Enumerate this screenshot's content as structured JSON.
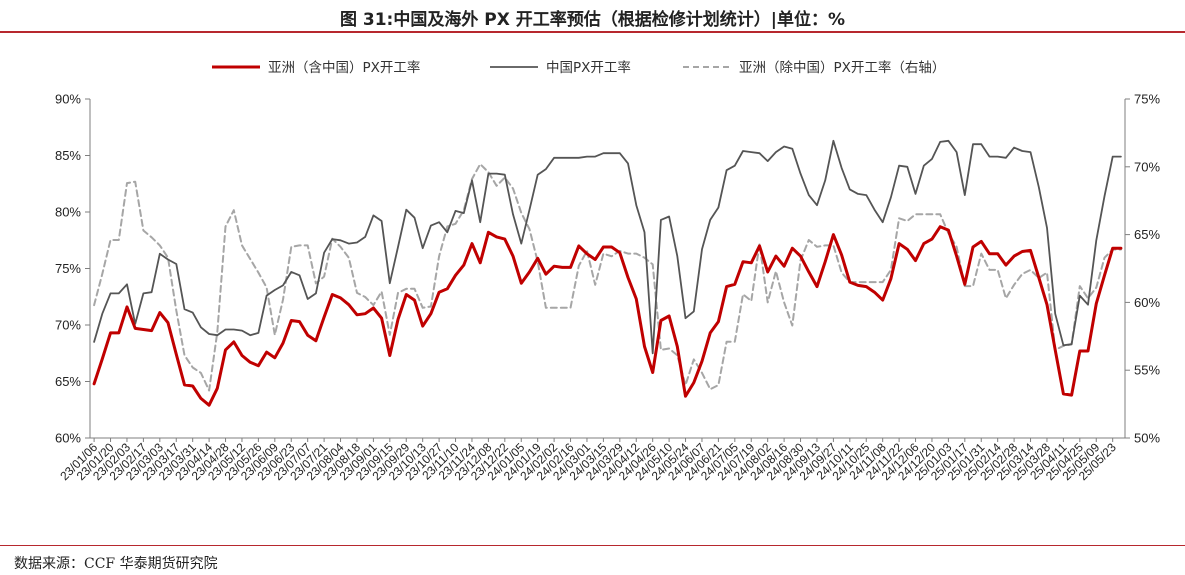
{
  "header": {
    "title": "图 31:中国及海外 PX 开工率预估（根据检修计划统计）|单位：%"
  },
  "footer": {
    "source": "数据来源：CCF 华泰期货研究院"
  },
  "colors": {
    "accent": "#b7282e",
    "asia": "#c00000",
    "china": "#555555",
    "asia_ex_china": "#a6a6a6",
    "axis": "#7f7f7f"
  },
  "chart_data": {
    "type": "line",
    "title": "",
    "x": [
      "23/01/06",
      "23/01/13",
      "23/01/20",
      "23/01/27",
      "23/02/03",
      "23/02/10",
      "23/02/17",
      "23/02/24",
      "23/03/03",
      "23/03/10",
      "23/03/17",
      "23/03/24",
      "23/03/31",
      "23/04/07",
      "23/04/14",
      "23/04/21",
      "23/04/28",
      "23/05/05",
      "23/05/12",
      "23/05/19",
      "23/05/26",
      "23/06/02",
      "23/06/09",
      "23/06/16",
      "23/06/23",
      "23/06/30",
      "23/07/07",
      "23/07/14",
      "23/07/21",
      "23/07/28",
      "23/08/04",
      "23/08/11",
      "23/08/18",
      "23/08/25",
      "23/09/01",
      "23/09/08",
      "23/09/15",
      "23/09/22",
      "23/09/29",
      "23/10/06",
      "23/10/13",
      "23/10/20",
      "23/10/27",
      "23/11/03",
      "23/11/10",
      "23/11/17",
      "23/11/24",
      "23/12/01",
      "23/12/08",
      "23/12/15",
      "23/12/22",
      "23/12/29",
      "24/01/05",
      "24/01/12",
      "24/01/19",
      "24/01/26",
      "24/02/02",
      "24/02/09",
      "24/02/16",
      "24/02/23",
      "24/03/01",
      "24/03/08",
      "24/03/15",
      "24/03/22",
      "24/03/29",
      "24/04/05",
      "24/04/12",
      "24/04/19",
      "24/04/26",
      "24/05/03",
      "24/05/10",
      "24/05/17",
      "24/05/24",
      "24/05/31",
      "24/06/07",
      "24/06/14",
      "24/06/21",
      "24/06/28",
      "24/07/05",
      "24/07/12",
      "24/07/19",
      "24/07/26",
      "24/08/02",
      "24/08/09",
      "24/08/16",
      "24/08/23",
      "24/08/30",
      "24/09/06",
      "24/09/13",
      "24/09/20",
      "24/09/27",
      "24/10/04",
      "24/10/11",
      "24/10/18",
      "24/10/25",
      "24/11/01",
      "24/11/08",
      "24/11/15",
      "24/11/22",
      "24/11/29",
      "24/12/06",
      "24/12/13",
      "24/12/20",
      "24/12/27",
      "25/01/03",
      "25/01/10",
      "25/01/17",
      "25/01/24",
      "25/01/31",
      "25/02/07",
      "25/02/14",
      "25/02/21",
      "25/02/28",
      "25/03/07",
      "25/03/14",
      "25/03/21",
      "25/03/28",
      "25/04/04",
      "25/04/11",
      "25/04/18",
      "25/04/25",
      "25/05/02",
      "25/05/09",
      "25/05/16",
      "25/05/23",
      "25/05/30"
    ],
    "xtick_labels": [
      "23/01/06",
      "23/01/20",
      "23/02/03",
      "23/02/17",
      "23/03/03",
      "23/03/17",
      "23/03/31",
      "23/04/14",
      "23/04/28",
      "23/05/12",
      "23/05/26",
      "23/06/09",
      "23/06/23",
      "23/07/07",
      "23/07/21",
      "23/08/04",
      "23/08/18",
      "23/09/01",
      "23/09/15",
      "23/09/29",
      "23/10/13",
      "23/10/27",
      "23/11/10",
      "23/11/24",
      "23/12/08",
      "23/12/22",
      "24/01/05",
      "24/01/19",
      "24/02/02",
      "24/02/16",
      "24/03/01",
      "24/03/15",
      "24/03/29",
      "24/04/12",
      "24/04/26",
      "24/05/10",
      "24/05/24",
      "24/06/07",
      "24/06/21",
      "24/07/05",
      "24/07/19",
      "24/08/02",
      "24/08/16",
      "24/08/30",
      "24/09/13",
      "24/09/27",
      "24/10/11",
      "24/10/25",
      "24/11/08",
      "24/11/22",
      "24/12/06",
      "24/12/20",
      "25/01/03",
      "25/01/17",
      "25/01/31",
      "25/02/14",
      "25/02/28",
      "25/03/14",
      "25/03/28",
      "25/04/11",
      "25/04/25",
      "25/05/09",
      "25/05/23"
    ],
    "y_left": {
      "min": 60,
      "max": 90,
      "ticks": [
        "60%",
        "65%",
        "70%",
        "75%",
        "80%",
        "85%",
        "90%"
      ]
    },
    "y_right": {
      "min": 50,
      "max": 75,
      "ticks": [
        "50%",
        "55%",
        "60%",
        "65%",
        "70%",
        "75%"
      ]
    },
    "grid": false,
    "legend_position": "top",
    "series": [
      {
        "name": "亚洲（含中国）PX开工率",
        "axis": "left",
        "style": "solid-thick",
        "color": "#c00000",
        "values": [
          64.8,
          67.0,
          69.3,
          69.3,
          71.6,
          69.7,
          69.6,
          69.5,
          71.1,
          70.2,
          67.4,
          64.7,
          64.6,
          63.5,
          62.9,
          64.4,
          67.8,
          68.5,
          67.3,
          66.7,
          66.4,
          67.6,
          67.1,
          68.4,
          70.4,
          70.3,
          69.1,
          68.6,
          70.7,
          72.7,
          72.4,
          71.8,
          70.9,
          71.0,
          71.5,
          70.6,
          67.3,
          70.5,
          72.7,
          72.2,
          69.9,
          71.0,
          72.9,
          73.2,
          74.4,
          75.3,
          77.2,
          75.5,
          78.2,
          77.8,
          77.6,
          76.1,
          73.7,
          74.7,
          75.9,
          74.5,
          75.2,
          75.1,
          75.1,
          77.0,
          76.3,
          75.8,
          76.9,
          76.9,
          76.4,
          74.2,
          72.3,
          68.1,
          65.8,
          70.4,
          70.8,
          68.1,
          63.7,
          64.9,
          66.8,
          69.3,
          70.3,
          73.4,
          73.6,
          75.6,
          75.5,
          77.0,
          74.7,
          76.1,
          75.2,
          76.8,
          76.1,
          74.7,
          73.4,
          75.6,
          78.0,
          76.2,
          73.8,
          73.5,
          73.4,
          72.9,
          72.2,
          74.1,
          77.2,
          76.7,
          75.7,
          77.2,
          77.6,
          78.7,
          78.4,
          76.1,
          73.6,
          76.9,
          77.4,
          76.3,
          76.3,
          75.3,
          76.1,
          76.5,
          76.6,
          74.2,
          71.8,
          67.8,
          63.9,
          63.8,
          67.7,
          67.7,
          71.9,
          74.4,
          76.8,
          76.8
        ]
      },
      {
        "name": "中国PX开工率",
        "axis": "left",
        "style": "solid",
        "color": "#555555",
        "values": [
          68.5,
          71.0,
          72.8,
          72.8,
          73.6,
          70.1,
          72.8,
          72.9,
          76.3,
          75.8,
          75.4,
          71.4,
          71.1,
          69.8,
          69.2,
          69.1,
          69.6,
          69.6,
          69.5,
          69.1,
          69.3,
          72.6,
          73.1,
          73.5,
          74.7,
          74.4,
          72.3,
          72.8,
          76.4,
          77.6,
          77.5,
          77.2,
          77.3,
          77.8,
          79.7,
          79.2,
          73.7,
          76.9,
          80.2,
          79.5,
          76.8,
          78.8,
          79.1,
          78.2,
          80.1,
          79.9,
          82.8,
          79.1,
          83.4,
          83.4,
          83.3,
          79.8,
          77.2,
          80.2,
          83.3,
          83.8,
          84.8,
          84.8,
          84.8,
          84.8,
          84.9,
          84.9,
          85.2,
          85.2,
          85.2,
          84.3,
          80.6,
          78.2,
          67.5,
          79.3,
          79.6,
          76.1,
          70.6,
          71.2,
          76.7,
          79.3,
          80.4,
          83.7,
          84.1,
          85.4,
          85.3,
          85.2,
          84.5,
          85.3,
          85.8,
          85.6,
          83.4,
          81.5,
          80.6,
          82.8,
          86.3,
          83.9,
          82.0,
          81.6,
          81.5,
          80.2,
          79.1,
          81.3,
          84.1,
          84.0,
          81.6,
          84.1,
          84.7,
          86.2,
          86.3,
          85.3,
          81.5,
          86.0,
          86.0,
          84.9,
          84.9,
          84.8,
          85.7,
          85.4,
          85.3,
          82.2,
          78.6,
          71.0,
          68.2,
          68.3,
          72.6,
          71.8,
          77.5,
          81.4,
          84.9,
          84.9
        ]
      },
      {
        "name": "亚洲（除中国）PX开工率（右轴）",
        "axis": "right",
        "style": "dashed",
        "color": "#a6a6a6",
        "values": [
          59.8,
          62.1,
          64.6,
          64.6,
          68.8,
          68.9,
          65.3,
          64.8,
          64.2,
          63.3,
          59.4,
          56.1,
          55.2,
          54.8,
          53.5,
          57.8,
          65.6,
          66.8,
          64.2,
          63.2,
          62.2,
          61.1,
          57.6,
          60.2,
          64.1,
          64.2,
          64.2,
          61.4,
          61.9,
          64.7,
          64.1,
          63.3,
          60.7,
          60.4,
          59.8,
          60.8,
          57.6,
          60.7,
          61.0,
          61.0,
          59.6,
          59.7,
          63.4,
          65.6,
          65.8,
          66.8,
          69.1,
          70.2,
          69.6,
          68.6,
          69.2,
          68.4,
          66.6,
          65.4,
          63.0,
          59.6,
          59.6,
          59.6,
          59.6,
          62.7,
          63.8,
          61.3,
          63.6,
          63.4,
          63.8,
          63.6,
          63.6,
          63.3,
          62.8,
          56.5,
          56.6,
          56.1,
          53.9,
          55.8,
          54.8,
          53.6,
          53.9,
          57.1,
          57.1,
          60.6,
          60.1,
          64.3,
          60.0,
          62.3,
          60.0,
          58.3,
          63.1,
          64.6,
          64.1,
          64.2,
          64.2,
          62.2,
          61.5,
          61.5,
          61.5,
          61.5,
          61.5,
          62.4,
          66.2,
          66.0,
          66.5,
          66.5,
          66.5,
          66.5,
          65.1,
          64.1,
          61.2,
          61.2,
          63.6,
          62.4,
          62.4,
          60.3,
          61.3,
          62.1,
          62.4,
          61.8,
          62.2,
          56.5,
          56.8,
          56.9,
          61.2,
          60.3,
          61.1,
          63.3,
          63.9,
          63.9
        ]
      }
    ]
  }
}
